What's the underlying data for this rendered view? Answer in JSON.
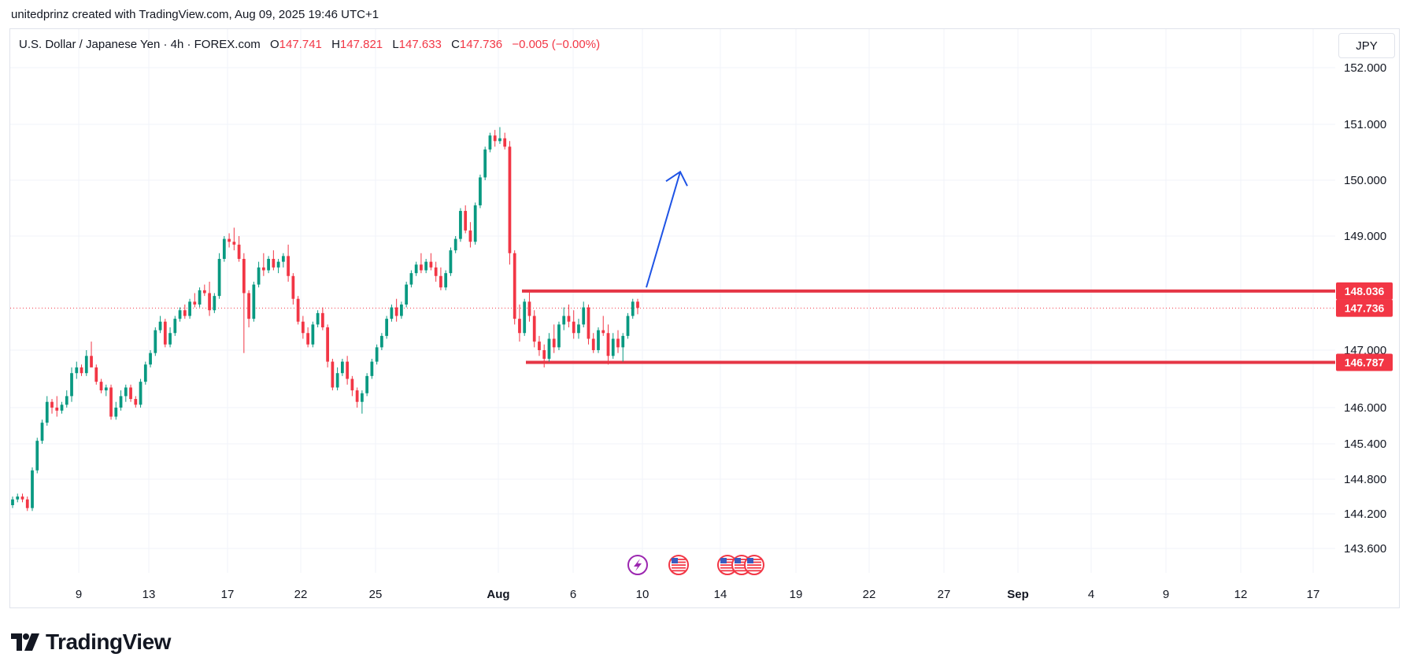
{
  "header": {
    "credit": "unitedprinz created with TradingView.com, Aug 09, 2025 19:46 UTC+1"
  },
  "legend": {
    "symbol": "U.S. Dollar / Japanese Yen · 4h · FOREX.com",
    "o_label": "O",
    "o_value": "147.741",
    "h_label": "H",
    "h_value": "147.821",
    "l_label": "L",
    "l_value": "147.633",
    "c_label": "C",
    "c_value": "147.736",
    "change": "−0.005 (−0.00%)"
  },
  "currency_button": "JPY",
  "logo": {
    "text": "TradingView"
  },
  "colors": {
    "up": "#089981",
    "down": "#f23645",
    "level": "#e53645",
    "arrow": "#1e53e5",
    "grid": "#f0f3fa",
    "event_purple": "#9c27b0"
  },
  "chart_data": {
    "type": "candlestick",
    "symbol": "USDJPY",
    "timeframe": "4h",
    "y_ticks": [
      "152.000",
      "151.000",
      "150.000",
      "149.000",
      "147.000",
      "146.000",
      "145.400",
      "144.800",
      "144.200",
      "143.600"
    ],
    "x_ticks": [
      {
        "label": "9",
        "bold": false
      },
      {
        "label": "13",
        "bold": false
      },
      {
        "label": "17",
        "bold": false
      },
      {
        "label": "22",
        "bold": false
      },
      {
        "label": "25",
        "bold": false
      },
      {
        "label": "Aug",
        "bold": true
      },
      {
        "label": "6",
        "bold": false
      },
      {
        "label": "10",
        "bold": false
      },
      {
        "label": "14",
        "bold": false
      },
      {
        "label": "19",
        "bold": false
      },
      {
        "label": "22",
        "bold": false
      },
      {
        "label": "27",
        "bold": false
      },
      {
        "label": "Sep",
        "bold": true
      },
      {
        "label": "4",
        "bold": false
      },
      {
        "label": "9",
        "bold": false
      },
      {
        "label": "12",
        "bold": false
      },
      {
        "label": "17",
        "bold": false
      }
    ],
    "price_labels": [
      {
        "price": 148.036,
        "text": "148.036",
        "kind": "level"
      },
      {
        "price": 147.736,
        "text": "147.736",
        "kind": "current"
      },
      {
        "price": 146.787,
        "text": "146.787",
        "kind": "level"
      }
    ],
    "horizontal_levels": [
      148.036,
      146.787
    ],
    "current_price": 147.736,
    "projection_arrow": {
      "from_price": 148.1,
      "to_price": 150.15,
      "direction": "up"
    },
    "event_markers": [
      "lightning",
      "us-flag",
      "us-flag",
      "us-flag",
      "us-flag"
    ],
    "candles_approx": [
      [
        144.35,
        144.5,
        144.3,
        144.45
      ],
      [
        144.45,
        144.55,
        144.4,
        144.5
      ],
      [
        144.5,
        144.55,
        144.4,
        144.45
      ],
      [
        144.45,
        144.5,
        144.25,
        144.3
      ],
      [
        144.3,
        145.0,
        144.25,
        144.95
      ],
      [
        144.95,
        145.5,
        144.9,
        145.45
      ],
      [
        145.45,
        145.8,
        145.4,
        145.75
      ],
      [
        145.75,
        146.2,
        145.7,
        146.1
      ],
      [
        146.1,
        146.15,
        145.9,
        146.0
      ],
      [
        146.0,
        146.2,
        145.85,
        145.95
      ],
      [
        145.95,
        146.1,
        145.9,
        146.05
      ],
      [
        146.05,
        146.3,
        146.0,
        146.2
      ],
      [
        146.2,
        146.7,
        146.1,
        146.6
      ],
      [
        146.6,
        146.8,
        146.5,
        146.7
      ],
      [
        146.7,
        146.75,
        146.55,
        146.6
      ],
      [
        146.6,
        147.0,
        146.55,
        146.9
      ],
      [
        146.9,
        147.15,
        146.8,
        146.7
      ],
      [
        146.7,
        146.75,
        146.4,
        146.45
      ],
      [
        146.45,
        146.5,
        146.25,
        146.3
      ],
      [
        146.3,
        146.4,
        146.2,
        146.35
      ],
      [
        146.35,
        146.4,
        145.8,
        145.85
      ],
      [
        145.85,
        146.1,
        145.8,
        146.0
      ],
      [
        146.0,
        146.3,
        145.95,
        146.2
      ],
      [
        146.2,
        146.4,
        146.1,
        146.35
      ],
      [
        146.35,
        146.4,
        146.1,
        146.15
      ],
      [
        146.15,
        146.2,
        146.0,
        146.05
      ],
      [
        146.05,
        146.5,
        146.0,
        146.45
      ],
      [
        146.45,
        146.8,
        146.4,
        146.75
      ],
      [
        146.75,
        147.0,
        146.7,
        146.95
      ],
      [
        146.95,
        147.4,
        146.9,
        147.35
      ],
      [
        147.35,
        147.6,
        147.3,
        147.5
      ],
      [
        147.5,
        147.55,
        147.05,
        147.1
      ],
      [
        147.1,
        147.4,
        147.05,
        147.3
      ],
      [
        147.3,
        147.6,
        147.25,
        147.55
      ],
      [
        147.55,
        147.75,
        147.5,
        147.7
      ],
      [
        147.7,
        147.8,
        147.55,
        147.6
      ],
      [
        147.6,
        147.9,
        147.55,
        147.85
      ],
      [
        147.85,
        148.0,
        147.75,
        147.8
      ],
      [
        147.8,
        148.1,
        147.75,
        148.05
      ],
      [
        148.05,
        148.15,
        147.95,
        148.0
      ],
      [
        148.0,
        148.2,
        147.6,
        147.7
      ],
      [
        147.7,
        148.0,
        147.65,
        147.95
      ],
      [
        147.95,
        148.7,
        147.9,
        148.6
      ],
      [
        148.6,
        149.0,
        148.55,
        148.95
      ],
      [
        148.95,
        149.05,
        148.8,
        148.9
      ],
      [
        148.9,
        149.15,
        148.75,
        148.85
      ],
      [
        148.85,
        149.0,
        148.55,
        148.6
      ],
      [
        148.6,
        148.7,
        146.95,
        148.0
      ],
      [
        148.0,
        148.05,
        147.4,
        147.55
      ],
      [
        147.55,
        148.2,
        147.5,
        148.15
      ],
      [
        148.15,
        148.55,
        148.1,
        148.45
      ],
      [
        148.45,
        148.7,
        148.3,
        148.4
      ],
      [
        148.4,
        148.65,
        148.35,
        148.6
      ],
      [
        148.6,
        148.75,
        148.4,
        148.45
      ],
      [
        148.45,
        148.6,
        148.35,
        148.55
      ],
      [
        148.55,
        148.7,
        148.45,
        148.65
      ],
      [
        148.65,
        148.85,
        148.2,
        148.3
      ],
      [
        148.3,
        148.35,
        147.8,
        147.9
      ],
      [
        147.9,
        147.95,
        147.45,
        147.5
      ],
      [
        147.5,
        147.6,
        147.2,
        147.3
      ],
      [
        147.3,
        147.4,
        147.05,
        147.1
      ],
      [
        147.1,
        147.5,
        147.05,
        147.45
      ],
      [
        147.45,
        147.7,
        147.4,
        147.65
      ],
      [
        147.65,
        147.75,
        147.35,
        147.4
      ],
      [
        147.4,
        147.45,
        146.7,
        146.8
      ],
      [
        146.8,
        146.85,
        146.3,
        146.35
      ],
      [
        146.35,
        146.7,
        146.3,
        146.6
      ],
      [
        146.6,
        146.85,
        146.55,
        146.8
      ],
      [
        146.8,
        146.9,
        146.4,
        146.5
      ],
      [
        146.5,
        146.55,
        146.2,
        146.3
      ],
      [
        146.3,
        146.35,
        146.0,
        146.1
      ],
      [
        146.1,
        146.3,
        145.9,
        146.25
      ],
      [
        146.25,
        146.6,
        146.2,
        146.55
      ],
      [
        146.55,
        146.85,
        146.5,
        146.8
      ],
      [
        146.8,
        147.1,
        146.75,
        147.05
      ],
      [
        147.05,
        147.3,
        147.0,
        147.25
      ],
      [
        147.25,
        147.6,
        147.2,
        147.55
      ],
      [
        147.55,
        147.8,
        147.5,
        147.75
      ],
      [
        147.75,
        147.9,
        147.5,
        147.6
      ],
      [
        147.6,
        147.85,
        147.55,
        147.8
      ],
      [
        147.8,
        148.2,
        147.75,
        148.15
      ],
      [
        148.15,
        148.4,
        148.1,
        148.35
      ],
      [
        148.35,
        148.55,
        148.3,
        148.5
      ],
      [
        148.5,
        148.7,
        148.35,
        148.4
      ],
      [
        148.4,
        148.6,
        148.35,
        148.55
      ],
      [
        148.55,
        148.7,
        148.4,
        148.45
      ],
      [
        148.45,
        148.55,
        148.2,
        148.3
      ],
      [
        148.3,
        148.45,
        148.05,
        148.1
      ],
      [
        148.1,
        148.4,
        148.05,
        148.35
      ],
      [
        148.35,
        148.8,
        148.3,
        148.75
      ],
      [
        148.75,
        149.0,
        148.7,
        148.95
      ],
      [
        148.95,
        149.5,
        148.9,
        149.45
      ],
      [
        149.45,
        149.55,
        149.05,
        149.1
      ],
      [
        149.1,
        149.25,
        148.8,
        148.9
      ],
      [
        148.9,
        149.6,
        148.85,
        149.55
      ],
      [
        149.55,
        150.1,
        149.5,
        150.05
      ],
      [
        150.05,
        150.6,
        150.0,
        150.55
      ],
      [
        150.55,
        150.85,
        150.5,
        150.8
      ],
      [
        150.8,
        150.9,
        150.6,
        150.7
      ],
      [
        150.7,
        150.95,
        150.65,
        150.75
      ],
      [
        150.75,
        150.85,
        150.55,
        150.6
      ],
      [
        150.6,
        150.7,
        148.5,
        148.7
      ],
      [
        148.7,
        148.75,
        147.45,
        147.55
      ],
      [
        147.55,
        147.8,
        147.15,
        147.3
      ],
      [
        147.3,
        147.9,
        147.25,
        147.85
      ],
      [
        147.85,
        148.05,
        147.5,
        147.6
      ],
      [
        147.6,
        147.7,
        147.05,
        147.15
      ],
      [
        147.15,
        147.25,
        146.9,
        147.0
      ],
      [
        147.0,
        147.1,
        146.7,
        146.85
      ],
      [
        146.85,
        147.3,
        146.8,
        147.2
      ],
      [
        147.2,
        147.45,
        146.95,
        147.05
      ],
      [
        147.05,
        147.5,
        147.0,
        147.45
      ],
      [
        147.45,
        147.75,
        147.35,
        147.6
      ],
      [
        147.6,
        147.8,
        147.4,
        147.5
      ],
      [
        147.5,
        147.7,
        147.2,
        147.3
      ],
      [
        147.3,
        147.55,
        147.2,
        147.45
      ],
      [
        147.45,
        147.85,
        147.4,
        147.75
      ],
      [
        147.75,
        147.8,
        147.1,
        147.2
      ],
      [
        147.2,
        147.3,
        146.95,
        147.0
      ],
      [
        147.0,
        147.4,
        146.95,
        147.35
      ],
      [
        147.35,
        147.6,
        147.25,
        147.3
      ],
      [
        147.3,
        147.45,
        146.75,
        146.9
      ],
      [
        146.9,
        147.3,
        146.85,
        147.2
      ],
      [
        147.2,
        147.35,
        146.95,
        147.05
      ],
      [
        147.05,
        147.3,
        146.8,
        147.25
      ],
      [
        147.25,
        147.65,
        147.2,
        147.6
      ],
      [
        147.6,
        147.9,
        147.55,
        147.85
      ],
      [
        147.85,
        147.9,
        147.63,
        147.74
      ]
    ]
  }
}
